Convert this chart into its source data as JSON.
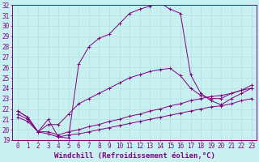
{
  "bg_color": "#c8f0f0",
  "line_color": "#800080",
  "grid_color": "#b0e0e0",
  "xlabel": "Windchill (Refroidissement éolien,°C)",
  "xlabel_fontsize": 6.5,
  "tick_fontsize": 5.5,
  "xlim": [
    -0.5,
    23.5
  ],
  "ylim": [
    19,
    32
  ],
  "yticks": [
    19,
    20,
    21,
    22,
    23,
    24,
    25,
    26,
    27,
    28,
    29,
    30,
    31,
    32
  ],
  "xticks": [
    0,
    1,
    2,
    3,
    4,
    5,
    6,
    7,
    8,
    9,
    10,
    11,
    12,
    13,
    14,
    15,
    16,
    17,
    18,
    19,
    20,
    21,
    22,
    23
  ],
  "series": [
    {
      "x": [
        0,
        1,
        2,
        3,
        4,
        5,
        6,
        7,
        8,
        9,
        10,
        11,
        12,
        13,
        14,
        15,
        16,
        17,
        18,
        19,
        20,
        21,
        22,
        23
      ],
      "y": [
        21.8,
        21.2,
        19.8,
        21.0,
        19.3,
        19.2,
        26.3,
        28.0,
        28.8,
        29.2,
        30.2,
        31.2,
        31.6,
        31.9,
        32.2,
        31.6,
        31.2,
        25.3,
        23.5,
        22.8,
        22.4,
        23.0,
        23.5,
        24.0
      ]
    },
    {
      "x": [
        0,
        1,
        2,
        3,
        4,
        5,
        6,
        7,
        8,
        9,
        10,
        11,
        12,
        13,
        14,
        15,
        16,
        17,
        18,
        19,
        20,
        21,
        22,
        23
      ],
      "y": [
        21.8,
        21.2,
        19.8,
        20.5,
        20.5,
        21.5,
        22.5,
        23.0,
        23.5,
        24.0,
        24.5,
        25.0,
        25.3,
        25.6,
        25.8,
        25.9,
        25.2,
        24.0,
        23.3,
        23.0,
        23.0,
        23.5,
        23.8,
        24.3
      ]
    },
    {
      "x": [
        0,
        1,
        2,
        3,
        4,
        5,
        6,
        7,
        8,
        9,
        10,
        11,
        12,
        13,
        14,
        15,
        16,
        17,
        18,
        19,
        20,
        21,
        22,
        23
      ],
      "y": [
        21.5,
        21.0,
        19.8,
        19.8,
        19.5,
        19.8,
        20.0,
        20.3,
        20.5,
        20.8,
        21.0,
        21.3,
        21.5,
        21.8,
        22.0,
        22.3,
        22.5,
        22.8,
        23.0,
        23.2,
        23.3,
        23.5,
        23.8,
        24.0
      ]
    },
    {
      "x": [
        0,
        1,
        2,
        3,
        4,
        5,
        6,
        7,
        8,
        9,
        10,
        11,
        12,
        13,
        14,
        15,
        16,
        17,
        18,
        19,
        20,
        21,
        22,
        23
      ],
      "y": [
        21.2,
        20.8,
        19.8,
        19.6,
        19.3,
        19.5,
        19.6,
        19.8,
        20.0,
        20.2,
        20.4,
        20.6,
        20.8,
        21.0,
        21.2,
        21.4,
        21.6,
        21.8,
        22.0,
        22.2,
        22.3,
        22.5,
        22.8,
        23.0
      ]
    }
  ]
}
